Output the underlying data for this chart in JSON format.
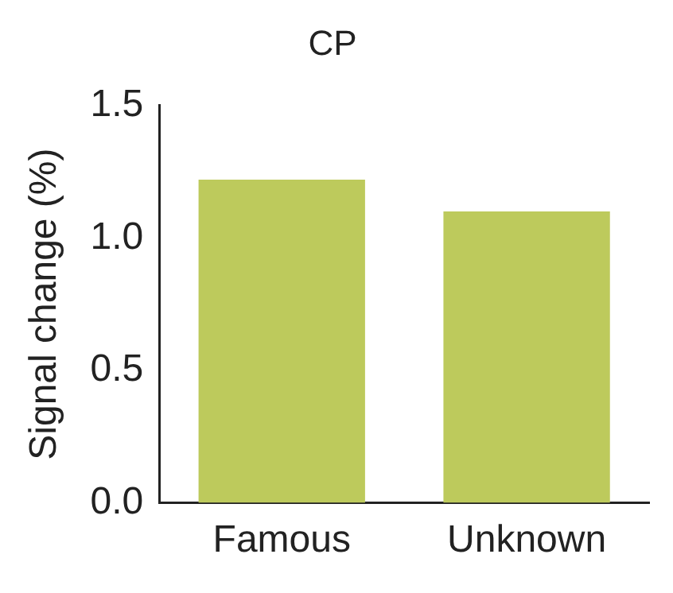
{
  "chart_data": {
    "type": "bar",
    "title": "CP",
    "ylabel": "Signal change (%)",
    "categories": [
      "Famous",
      "Unknown"
    ],
    "values": [
      1.22,
      1.1
    ],
    "color": "#bdca5c",
    "ylim": [
      0,
      1.5
    ],
    "yticks": [
      {
        "value": 0,
        "label": "0.0"
      },
      {
        "value": 0.5,
        "label": "0.5"
      },
      {
        "value": 1,
        "label": "1.0"
      },
      {
        "value": 1.5,
        "label": "1.5"
      }
    ],
    "grid": false
  }
}
